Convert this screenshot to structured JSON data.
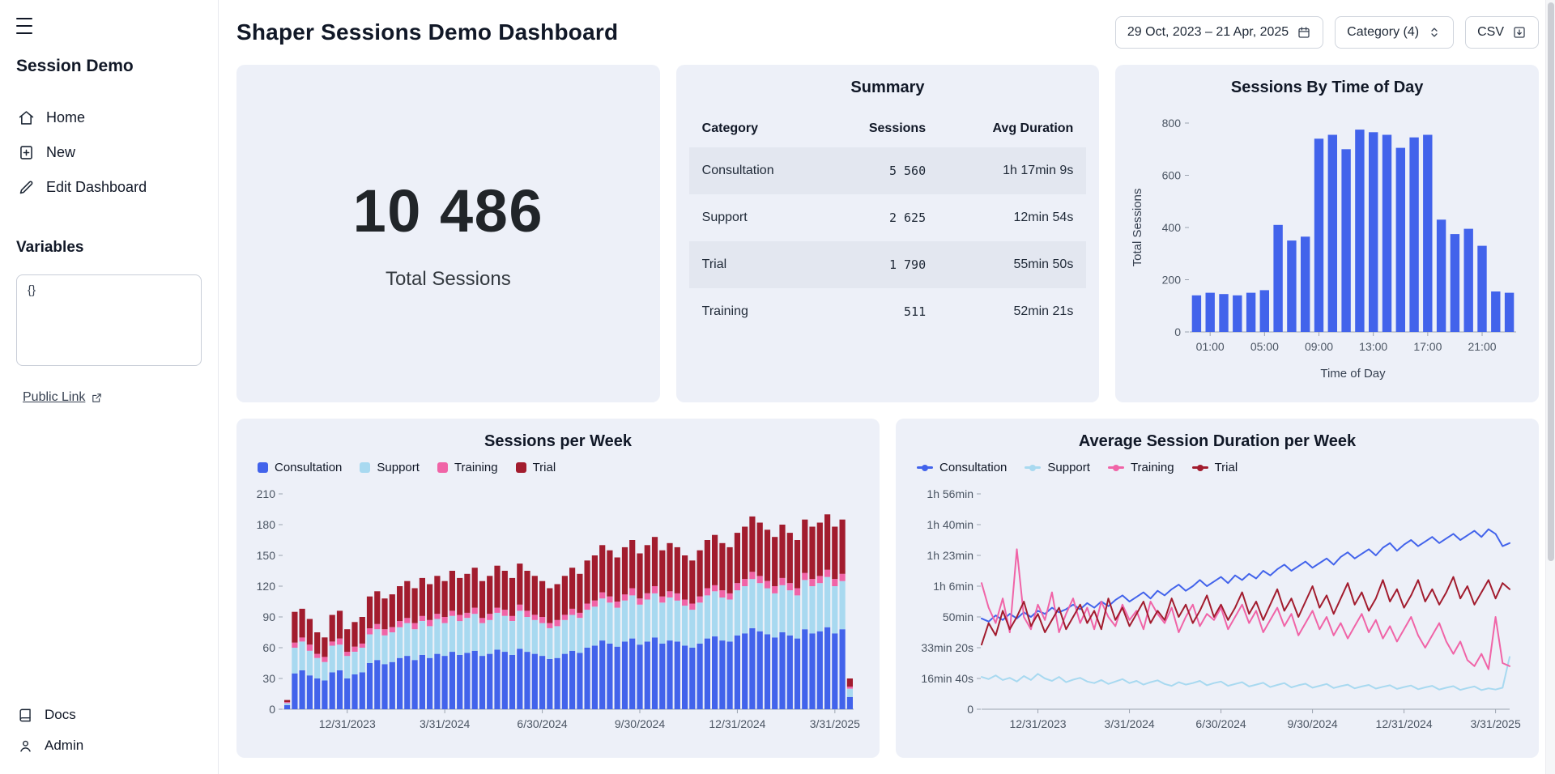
{
  "sidebar": {
    "app_title": "Session Demo",
    "nav": [
      {
        "label": "Home",
        "icon": "home-icon"
      },
      {
        "label": "New",
        "icon": "new-document-icon"
      },
      {
        "label": "Edit Dashboard",
        "icon": "pencil-icon"
      }
    ],
    "variables_label": "Variables",
    "variables_value": "{}",
    "public_link_label": "Public Link",
    "footer": [
      {
        "label": "Docs",
        "icon": "book-icon"
      },
      {
        "label": "Admin",
        "icon": "person-icon"
      }
    ]
  },
  "header": {
    "title": "Shaper Sessions Demo Dashboard",
    "date_range": "29 Oct, 2023 – 21 Apr, 2025",
    "category_filter": "Category (4)",
    "csv_label": "CSV"
  },
  "icons": [
    "hamburger-icon",
    "home-icon",
    "new-document-icon",
    "pencil-icon",
    "external-link-icon",
    "book-icon",
    "person-icon",
    "calendar-icon",
    "chevron-up-down-icon",
    "download-icon"
  ],
  "colors": {
    "card_bg": "#edf0f8",
    "table_alt_row": "#e3e7f0",
    "consultation": "#4263eb",
    "support": "#a8d9f0",
    "training": "#f064a7",
    "trial": "#a21c2e"
  },
  "total_sessions": {
    "value": "10 486",
    "label": "Total Sessions"
  },
  "summary": {
    "title": "Summary",
    "columns": [
      "Category",
      "Sessions",
      "Avg Duration"
    ],
    "rows": [
      {
        "category": "Consultation",
        "sessions": "5 560",
        "avg": "1h 17min 9s"
      },
      {
        "category": "Support",
        "sessions": "2 625",
        "avg": "12min 54s"
      },
      {
        "category": "Trial",
        "sessions": "1 790",
        "avg": "55min 50s"
      },
      {
        "category": "Training",
        "sessions": "511",
        "avg": "52min 21s"
      }
    ]
  },
  "chart_data": [
    {
      "type": "bar",
      "title": "Sessions By Time of Day",
      "xlabel": "Time of Day",
      "ylabel": "Total Sessions",
      "ylim": [
        0,
        800
      ],
      "yticks": [
        0,
        200,
        400,
        600,
        800
      ],
      "bar_color": "#4263eb",
      "categories": [
        "00:00",
        "01:00",
        "02:00",
        "03:00",
        "04:00",
        "05:00",
        "06:00",
        "07:00",
        "08:00",
        "09:00",
        "10:00",
        "11:00",
        "12:00",
        "13:00",
        "14:00",
        "15:00",
        "16:00",
        "17:00",
        "18:00",
        "19:00",
        "20:00",
        "21:00",
        "22:00",
        "23:00"
      ],
      "xtick_indices": [
        1,
        5,
        9,
        13,
        17,
        21
      ],
      "xtick_labels": [
        "01:00",
        "05:00",
        "09:00",
        "13:00",
        "17:00",
        "21:00"
      ],
      "values": [
        140,
        150,
        145,
        140,
        150,
        160,
        410,
        350,
        365,
        740,
        755,
        700,
        775,
        765,
        755,
        705,
        745,
        755,
        430,
        375,
        395,
        330,
        155,
        150
      ]
    },
    {
      "type": "stacked-bar",
      "title": "Sessions per Week",
      "xlabel": "",
      "ylabel": "",
      "ylim": [
        0,
        210
      ],
      "yticks": [
        0,
        30,
        60,
        90,
        120,
        150,
        180,
        210
      ],
      "xtick_indices": [
        8,
        21,
        34,
        47,
        60,
        73
      ],
      "xtick_labels": [
        "12/31/2023",
        "3/31/2024",
        "6/30/2024",
        "9/30/2024",
        "12/31/2024",
        "3/31/2025"
      ],
      "series": [
        {
          "name": "Consultation",
          "color": "#4263eb",
          "values": [
            4,
            35,
            38,
            33,
            30,
            28,
            36,
            38,
            30,
            34,
            36,
            45,
            48,
            44,
            46,
            50,
            52,
            48,
            53,
            50,
            54,
            52,
            56,
            53,
            55,
            57,
            52,
            54,
            58,
            56,
            53,
            59,
            56,
            54,
            52,
            49,
            50,
            54,
            57,
            55,
            60,
            62,
            67,
            64,
            61,
            66,
            69,
            63,
            66,
            70,
            64,
            67,
            66,
            62,
            60,
            64,
            69,
            71,
            67,
            66,
            72,
            74,
            79,
            76,
            73,
            70,
            75,
            72,
            69,
            78,
            74,
            76,
            80,
            74,
            78,
            12
          ]
        },
        {
          "name": "Support",
          "color": "#a8d9f0",
          "values": [
            2,
            25,
            28,
            24,
            20,
            18,
            26,
            25,
            22,
            22,
            24,
            28,
            30,
            28,
            29,
            30,
            32,
            30,
            33,
            31,
            34,
            32,
            35,
            33,
            34,
            36,
            32,
            33,
            36,
            35,
            33,
            37,
            34,
            33,
            32,
            30,
            31,
            33,
            35,
            34,
            37,
            38,
            41,
            40,
            38,
            40,
            42,
            39,
            41,
            43,
            40,
            42,
            40,
            39,
            37,
            40,
            42,
            44,
            42,
            41,
            44,
            46,
            48,
            47,
            45,
            43,
            46,
            44,
            42,
            48,
            46,
            47,
            49,
            46,
            47,
            8
          ]
        },
        {
          "name": "Training",
          "color": "#f064a7",
          "values": [
            1,
            5,
            4,
            6,
            4,
            5,
            4,
            6,
            4,
            5,
            4,
            6,
            5,
            6,
            5,
            6,
            5,
            6,
            5,
            6,
            5,
            6,
            5,
            6,
            5,
            6,
            5,
            6,
            5,
            6,
            5,
            6,
            6,
            5,
            6,
            5,
            6,
            5,
            6,
            5,
            6,
            6,
            6,
            6,
            6,
            6,
            7,
            6,
            6,
            7,
            6,
            6,
            7,
            6,
            6,
            6,
            7,
            6,
            7,
            6,
            7,
            7,
            7,
            7,
            7,
            7,
            7,
            7,
            7,
            7,
            7,
            7,
            7,
            7,
            7,
            2
          ]
        },
        {
          "name": "Trial",
          "color": "#a21c2e",
          "values": [
            2,
            30,
            28,
            25,
            21,
            19,
            26,
            27,
            22,
            24,
            26,
            31,
            32,
            30,
            32,
            34,
            36,
            34,
            37,
            35,
            37,
            35,
            39,
            36,
            38,
            39,
            36,
            37,
            41,
            38,
            37,
            40,
            39,
            38,
            35,
            34,
            35,
            38,
            40,
            38,
            42,
            44,
            46,
            45,
            43,
            46,
            47,
            44,
            47,
            48,
            45,
            47,
            45,
            43,
            42,
            45,
            47,
            49,
            46,
            45,
            49,
            51,
            54,
            52,
            50,
            48,
            52,
            49,
            47,
            52,
            51,
            52,
            54,
            51,
            53,
            8
          ]
        }
      ]
    },
    {
      "type": "line",
      "title": "Average Session Duration per Week",
      "xlabel": "",
      "ylabel": "",
      "y_unit": "seconds",
      "ylim": [
        0,
        7000
      ],
      "yticks": [
        0,
        1000,
        2000,
        3000,
        4000,
        5000,
        6000,
        7000
      ],
      "ytick_labels": [
        "0",
        "16min 40s",
        "33min 20s",
        "50min",
        "1h 6min",
        "1h 23min",
        "1h 40min",
        "1h 56min"
      ],
      "xtick_indices": [
        8,
        21,
        34,
        47,
        60,
        73
      ],
      "xtick_labels": [
        "12/31/2023",
        "3/31/2024",
        "6/30/2024",
        "9/30/2024",
        "12/31/2024",
        "3/31/2025"
      ],
      "series": [
        {
          "name": "Consultation",
          "color": "#4263eb",
          "values": [
            2950,
            2850,
            3050,
            2900,
            3100,
            2950,
            3150,
            3000,
            3200,
            3100,
            3300,
            3150,
            3250,
            3400,
            3250,
            3450,
            3300,
            3500,
            3350,
            3550,
            3700,
            3500,
            3650,
            3800,
            3600,
            3850,
            3700,
            3900,
            4050,
            3850,
            4000,
            4200,
            4000,
            4150,
            4300,
            4100,
            4350,
            4200,
            4400,
            4250,
            4500,
            4350,
            4550,
            4700,
            4500,
            4650,
            4800,
            4600,
            4750,
            4900,
            4700,
            4950,
            5100,
            4900,
            5050,
            5200,
            5000,
            5250,
            5400,
            5150,
            5350,
            5500,
            5300,
            5450,
            5600,
            5400,
            5550,
            5700,
            5500,
            5650,
            5800,
            5600,
            5850,
            5700,
            5300,
            5400
          ]
        },
        {
          "name": "Support",
          "color": "#a8d9f0",
          "values": [
            1050,
            980,
            1100,
            950,
            1020,
            900,
            1080,
            950,
            1150,
            1000,
            920,
            1050,
            880,
            960,
            1020,
            900,
            850,
            950,
            820,
            900,
            980,
            850,
            920,
            800,
            880,
            940,
            820,
            760,
            880,
            800,
            850,
            920,
            780,
            850,
            900,
            760,
            820,
            880,
            740,
            800,
            860,
            720,
            790,
            850,
            710,
            780,
            830,
            700,
            760,
            820,
            690,
            750,
            800,
            680,
            740,
            790,
            670,
            730,
            780,
            660,
            720,
            770,
            650,
            710,
            760,
            640,
            700,
            750,
            630,
            690,
            740,
            620,
            680,
            640,
            700,
            1700
          ]
        },
        {
          "name": "Training",
          "color": "#f064a7",
          "values": [
            4100,
            3300,
            2800,
            3600,
            2500,
            5200,
            3000,
            2600,
            3400,
            2900,
            3800,
            2500,
            3100,
            3600,
            2800,
            3300,
            2600,
            3500,
            3000,
            2700,
            3400,
            2900,
            3200,
            2600,
            3500,
            3100,
            2800,
            3300,
            2500,
            3000,
            3400,
            2700,
            3100,
            2900,
            3300,
            2600,
            3000,
            3400,
            2800,
            3200,
            2500,
            2900,
            3300,
            2700,
            3100,
            2400,
            2800,
            3200,
            2600,
            3000,
            2400,
            2800,
            2300,
            2700,
            3100,
            2500,
            2900,
            2300,
            2700,
            2200,
            2600,
            3000,
            2400,
            2000,
            2400,
            2800,
            2200,
            1800,
            2200,
            1600,
            1400,
            1800,
            1300,
            3000,
            1500,
            1400
          ]
        },
        {
          "name": "Trial",
          "color": "#a21c2e",
          "values": [
            2100,
            2800,
            2400,
            3200,
            2600,
            3000,
            3500,
            2700,
            3100,
            2500,
            2900,
            3300,
            2600,
            3000,
            3400,
            2800,
            3200,
            2600,
            3600,
            2900,
            3300,
            2700,
            3100,
            3500,
            2800,
            3200,
            2900,
            3600,
            3000,
            3400,
            2800,
            3200,
            3700,
            3000,
            3400,
            2900,
            3300,
            3800,
            3100,
            3500,
            2900,
            3400,
            3900,
            3200,
            3600,
            3000,
            3500,
            4000,
            3300,
            3700,
            3100,
            3600,
            4100,
            3400,
            3800,
            3200,
            3600,
            4200,
            3500,
            3900,
            3300,
            3700,
            4200,
            3500,
            3900,
            3400,
            3800,
            4300,
            3600,
            4000,
            3400,
            3800,
            4200,
            3600,
            4100,
            3900
          ]
        }
      ]
    }
  ]
}
